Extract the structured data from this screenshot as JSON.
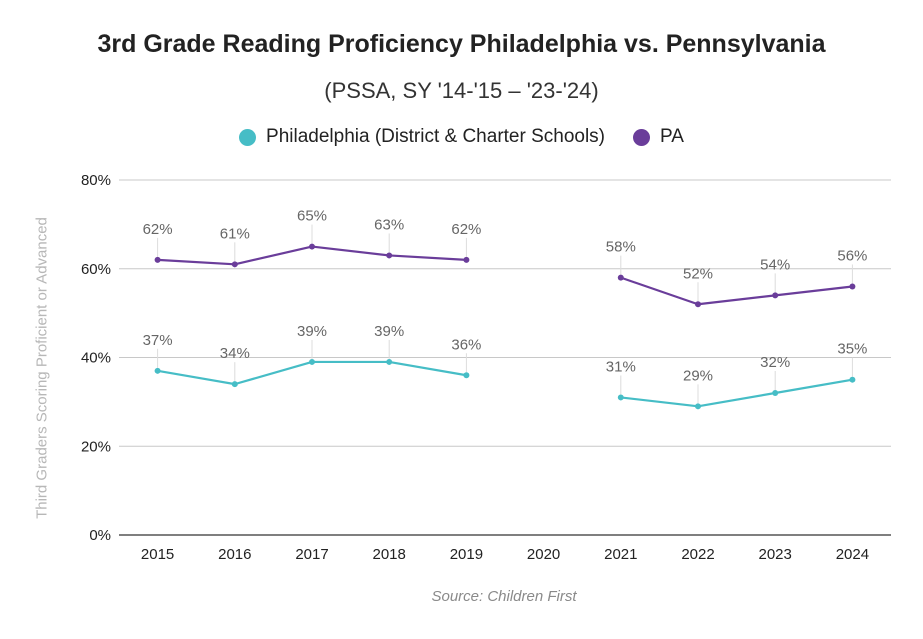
{
  "chart_data": {
    "type": "line",
    "title": "3rd Grade Reading Proficiency Philadelphia vs. Pennsylvania",
    "subtitle": "(PSSA, SY '14-'15 – '23-'24)",
    "xlabel": "",
    "ylabel": "Third Graders Scoring Proficient or Advanced",
    "ylim": [
      0,
      80
    ],
    "yticks": [
      "0%",
      "20%",
      "40%",
      "60%",
      "80%"
    ],
    "ytick_values": [
      0,
      20,
      40,
      60,
      80
    ],
    "categories": [
      "2015",
      "2016",
      "2017",
      "2018",
      "2019",
      "2020",
      "2021",
      "2022",
      "2023",
      "2024"
    ],
    "legend_position": "top-center",
    "grid": true,
    "series": [
      {
        "name": "Philadelphia (District & Charter Schools)",
        "color": "#46bdc6",
        "values": [
          37,
          34,
          39,
          39,
          36,
          null,
          31,
          29,
          32,
          35
        ],
        "labels": [
          "37%",
          "34%",
          "39%",
          "39%",
          "36%",
          null,
          "31%",
          "29%",
          "32%",
          "35%"
        ]
      },
      {
        "name": "PA",
        "color": "#6a3d9a",
        "values": [
          62,
          61,
          65,
          63,
          62,
          null,
          58,
          52,
          54,
          56
        ],
        "labels": [
          "62%",
          "61%",
          "65%",
          "63%",
          "62%",
          null,
          "58%",
          "52%",
          "54%",
          "56%"
        ]
      }
    ],
    "source": "Source: Children First"
  }
}
